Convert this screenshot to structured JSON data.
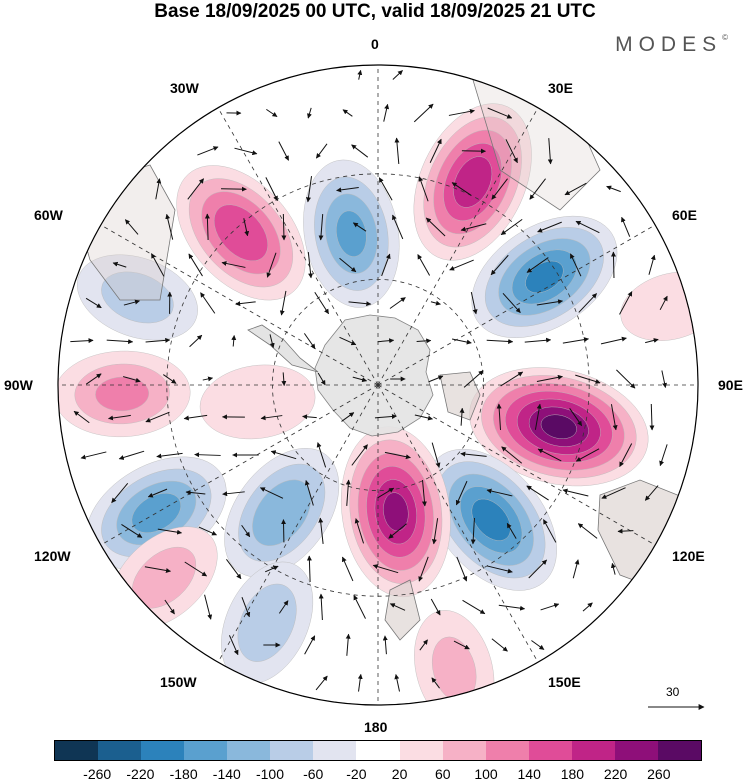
{
  "title": "Base 18/09/2025 00 UTC, valid 18/09/2025 21 UTC",
  "brand": "MODES",
  "brand_mark": "©",
  "longitude_labels": {
    "lon_0": "0",
    "lon_30e": "30E",
    "lon_60e": "60E",
    "lon_90e": "90E",
    "lon_120e": "120E",
    "lon_150e": "150E",
    "lon_180": "180",
    "lon_150w": "150W",
    "lon_120w": "120W",
    "lon_90w": "90W",
    "lon_60w": "60W",
    "lon_30w": "30W"
  },
  "vector_reference": {
    "value": "30",
    "icon": "arrow-right-icon"
  },
  "colorbar": {
    "colors": [
      "#0f3554",
      "#1b5f8f",
      "#2c82bb",
      "#5aa0cf",
      "#8ab8dc",
      "#b9cde7",
      "#e2e4f0",
      "#ffffff",
      "#fbdde3",
      "#f6b1c6",
      "#ef7fab",
      "#e04c98",
      "#c02487",
      "#8e0f79",
      "#5a0a64"
    ],
    "ticks": [
      "-260",
      "-220",
      "-180",
      "-140",
      "-100",
      "-60",
      "-20",
      "20",
      "60",
      "100",
      "140",
      "180",
      "220",
      "260"
    ]
  },
  "anomaly_centers": [
    {
      "lon": -42,
      "r": 0.64,
      "value": 180
    },
    {
      "lon": -10,
      "r": 0.48,
      "value": -150
    },
    {
      "lon": 25,
      "r": 0.7,
      "value": 210
    },
    {
      "lon": 57,
      "r": 0.62,
      "value": -190
    },
    {
      "lon": 103,
      "r": 0.58,
      "value": 270
    },
    {
      "lon": 140,
      "r": 0.55,
      "value": -200
    },
    {
      "lon": 172,
      "r": 0.4,
      "value": 230
    },
    {
      "lon": -143,
      "r": 0.5,
      "value": -140
    },
    {
      "lon": -120,
      "r": 0.8,
      "value": -160
    },
    {
      "lon": -155,
      "r": 0.82,
      "value": -90
    },
    {
      "lon": -132,
      "r": 0.9,
      "value": 80
    },
    {
      "lon": -92,
      "r": 0.8,
      "value": 110
    },
    {
      "lon": -70,
      "r": 0.8,
      "value": -80
    },
    {
      "lon": -98,
      "r": 0.38,
      "value": 60
    },
    {
      "lon": 165,
      "r": 0.92,
      "value": 70
    },
    {
      "lon": 75,
      "r": 0.95,
      "value": 40
    }
  ]
}
